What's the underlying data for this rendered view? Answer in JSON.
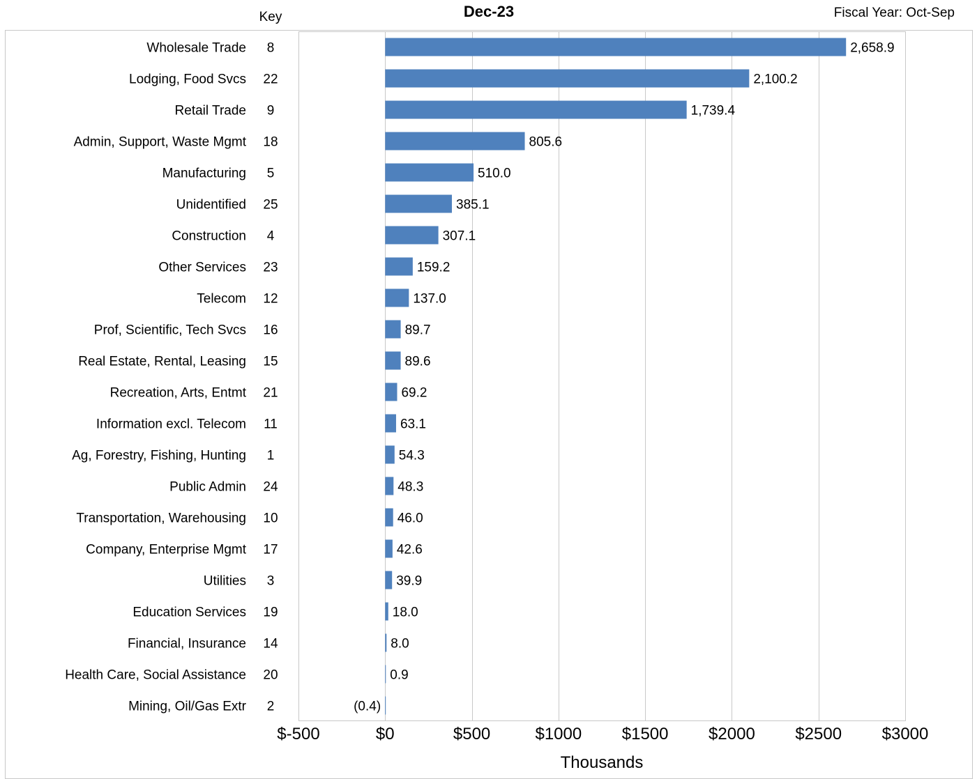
{
  "header": {
    "key_label": "Key",
    "title": "Dec-23",
    "fiscal_label": "Fiscal Year: Oct-Sep"
  },
  "colors": {
    "bar": "#4f81bd",
    "grid": "#c8c8c8",
    "frame": "#c8c8c8"
  },
  "chart_data": {
    "type": "bar",
    "orientation": "horizontal",
    "title": "Dec-23",
    "xlabel": "Thousands",
    "xlim": [
      -500,
      3000
    ],
    "xticks": [
      -500,
      0,
      500,
      1000,
      1500,
      2000,
      2500,
      3000
    ],
    "xtick_labels": [
      "$-500",
      "$0",
      "$500",
      "$1000",
      "$1500",
      "$2000",
      "$2500",
      "$3000"
    ],
    "grid": true,
    "categories": [
      {
        "name": "Wholesale Trade",
        "key": "8",
        "value": 2658.9,
        "label": "2,658.9"
      },
      {
        "name": "Lodging, Food Svcs",
        "key": "22",
        "value": 2100.2,
        "label": "2,100.2"
      },
      {
        "name": "Retail Trade",
        "key": "9",
        "value": 1739.4,
        "label": "1,739.4"
      },
      {
        "name": "Admin, Support, Waste Mgmt",
        "key": "18",
        "value": 805.6,
        "label": "805.6"
      },
      {
        "name": "Manufacturing",
        "key": "5",
        "value": 510.0,
        "label": "510.0"
      },
      {
        "name": "Unidentified",
        "key": "25",
        "value": 385.1,
        "label": "385.1"
      },
      {
        "name": "Construction",
        "key": "4",
        "value": 307.1,
        "label": "307.1"
      },
      {
        "name": "Other Services",
        "key": "23",
        "value": 159.2,
        "label": "159.2"
      },
      {
        "name": "Telecom",
        "key": "12",
        "value": 137.0,
        "label": "137.0"
      },
      {
        "name": "Prof, Scientific, Tech Svcs",
        "key": "16",
        "value": 89.7,
        "label": "89.7"
      },
      {
        "name": "Real Estate, Rental, Leasing",
        "key": "15",
        "value": 89.6,
        "label": "89.6"
      },
      {
        "name": "Recreation, Arts, Entmt",
        "key": "21",
        "value": 69.2,
        "label": "69.2"
      },
      {
        "name": "Information excl. Telecom",
        "key": "11",
        "value": 63.1,
        "label": "63.1"
      },
      {
        "name": "Ag, Forestry, Fishing, Hunting",
        "key": "1",
        "value": 54.3,
        "label": "54.3"
      },
      {
        "name": "Public Admin",
        "key": "24",
        "value": 48.3,
        "label": "48.3"
      },
      {
        "name": "Transportation, Warehousing",
        "key": "10",
        "value": 46.0,
        "label": "46.0"
      },
      {
        "name": "Company, Enterprise Mgmt",
        "key": "17",
        "value": 42.6,
        "label": "42.6"
      },
      {
        "name": "Utilities",
        "key": "3",
        "value": 39.9,
        "label": "39.9"
      },
      {
        "name": "Education Services",
        "key": "19",
        "value": 18.0,
        "label": "18.0"
      },
      {
        "name": "Financial, Insurance",
        "key": "14",
        "value": 8.0,
        "label": "8.0"
      },
      {
        "name": "Health Care, Social Assistance",
        "key": "20",
        "value": 0.9,
        "label": "0.9"
      },
      {
        "name": "Mining, Oil/Gas Extr",
        "key": "2",
        "value": -0.4,
        "label": "(0.4)"
      }
    ]
  }
}
